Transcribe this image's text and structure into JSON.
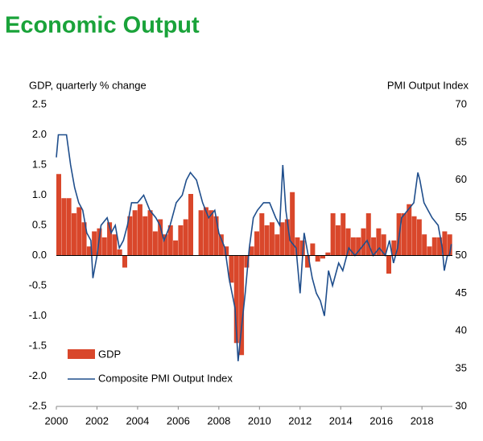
{
  "chart_data": {
    "type": "bar-line",
    "title": "Economic Output",
    "ylabel": "GDP, quarterly % change",
    "y2label": "PMI Output  Index",
    "xlim": [
      2000,
      2019.5
    ],
    "xticks": [
      2000,
      2002,
      2004,
      2006,
      2008,
      2010,
      2012,
      2014,
      2016,
      2018
    ],
    "ylim": [
      -2.5,
      2.5
    ],
    "yticks": [
      2.5,
      {
        "value": 2,
        "label": "2.0"
      },
      1.5,
      {
        "value": 1,
        "label": "1.0"
      },
      0.5,
      {
        "value": 0,
        "label": "0.0"
      },
      -0.5,
      {
        "value": -1,
        "label": "-1.0"
      },
      -1.5,
      {
        "value": -2,
        "label": "-2.0"
      },
      -2.5
    ],
    "y2lim": [
      30,
      70
    ],
    "y2ticks": [
      70,
      65,
      60,
      55,
      50,
      45,
      40,
      35,
      30
    ],
    "series": [
      {
        "name": "GDP",
        "color": "#d9472b",
        "x": [
          2000,
          2000.25,
          2000.5,
          2000.75,
          2001,
          2001.25,
          2001.5,
          2001.75,
          2002,
          2002.25,
          2002.5,
          2002.75,
          2003,
          2003.25,
          2003.5,
          2003.75,
          2004,
          2004.25,
          2004.5,
          2004.75,
          2005,
          2005.25,
          2005.5,
          2005.75,
          2006,
          2006.25,
          2006.5,
          2006.75,
          2007,
          2007.25,
          2007.5,
          2007.75,
          2008,
          2008.25,
          2008.5,
          2008.75,
          2009,
          2009.25,
          2009.5,
          2009.75,
          2010,
          2010.25,
          2010.5,
          2010.75,
          2011,
          2011.25,
          2011.5,
          2011.75,
          2012,
          2012.25,
          2012.5,
          2012.75,
          2013,
          2013.25,
          2013.5,
          2013.75,
          2014,
          2014.25,
          2014.5,
          2014.75,
          2015,
          2015.25,
          2015.5,
          2015.75,
          2016,
          2016.25,
          2016.5,
          2016.75,
          2017,
          2017.25,
          2017.5,
          2017.75,
          2018,
          2018.25,
          2018.5,
          2018.75,
          2019,
          2019.25
        ],
        "values": [
          1.35,
          0.95,
          0.95,
          0.7,
          0.8,
          0.55,
          0.15,
          0.4,
          0.45,
          0.3,
          0.55,
          0.35,
          0.1,
          -0.2,
          0.65,
          0.75,
          0.85,
          0.65,
          0.75,
          0.4,
          0.6,
          0.35,
          0.5,
          0.25,
          0.5,
          0.6,
          1.02,
          0.0,
          0.75,
          0.8,
          0.75,
          0.65,
          0.35,
          0.15,
          -0.45,
          -1.45,
          -1.65,
          -0.2,
          0.15,
          0.4,
          0.7,
          0.5,
          0.55,
          0.35,
          0.55,
          0.6,
          1.05,
          0.3,
          0.25,
          -0.2,
          0.2,
          -0.1,
          -0.05,
          0.05,
          0.7,
          0.5,
          0.7,
          0.45,
          0.3,
          0.3,
          0.45,
          0.7,
          0.3,
          0.45,
          0.35,
          -0.3,
          0.25,
          0.7,
          0.7,
          0.85,
          0.65,
          0.6,
          0.35,
          0.15,
          0.3,
          0.3,
          0.4,
          0.35
        ]
      },
      {
        "name": "Composite PMI Output Index",
        "color": "#1f4e8c",
        "axis": "y2",
        "x": [
          2000,
          2000.1,
          2000.3,
          2000.5,
          2000.7,
          2000.9,
          2001.1,
          2001.3,
          2001.5,
          2001.7,
          2001.8,
          2002,
          2002.2,
          2002.5,
          2002.7,
          2002.9,
          2003.1,
          2003.3,
          2003.5,
          2003.7,
          2004,
          2004.3,
          2004.6,
          2004.9,
          2005.1,
          2005.3,
          2005.6,
          2005.9,
          2006.2,
          2006.4,
          2006.6,
          2006.9,
          2007.2,
          2007.5,
          2007.8,
          2008,
          2008.3,
          2008.5,
          2008.8,
          2008.95,
          2009.1,
          2009.3,
          2009.5,
          2009.7,
          2009.9,
          2010.2,
          2010.5,
          2010.8,
          2011,
          2011.15,
          2011.3,
          2011.5,
          2011.8,
          2012,
          2012.2,
          2012.4,
          2012.6,
          2012.8,
          2013,
          2013.2,
          2013.4,
          2013.6,
          2013.9,
          2014.1,
          2014.4,
          2014.7,
          2015,
          2015.3,
          2015.6,
          2015.9,
          2016.2,
          2016.4,
          2016.6,
          2016.8,
          2017,
          2017.3,
          2017.6,
          2017.8,
          2017.9,
          2018.1,
          2018.3,
          2018.5,
          2018.8,
          2019,
          2019.1,
          2019.25,
          2019.35,
          2019.45
        ],
        "values": [
          63,
          66,
          66,
          66,
          62,
          59,
          57,
          56,
          53,
          52,
          47,
          50,
          54,
          55,
          53,
          54,
          51,
          52,
          54,
          57,
          57,
          58,
          56,
          55,
          54,
          52,
          54,
          57,
          58,
          60,
          61,
          60,
          57,
          55,
          56,
          53,
          51,
          47,
          43,
          36,
          40,
          45,
          51,
          55,
          56,
          57,
          57,
          55,
          54,
          62,
          56,
          52,
          51,
          45,
          53,
          50,
          47,
          45,
          44,
          42,
          48,
          46,
          49,
          48,
          51,
          50,
          51,
          52,
          50,
          51,
          50,
          52,
          49,
          51,
          55,
          56,
          57,
          61,
          60,
          57,
          56,
          55,
          54,
          51,
          48,
          50,
          50,
          51.5
        ]
      }
    ]
  }
}
